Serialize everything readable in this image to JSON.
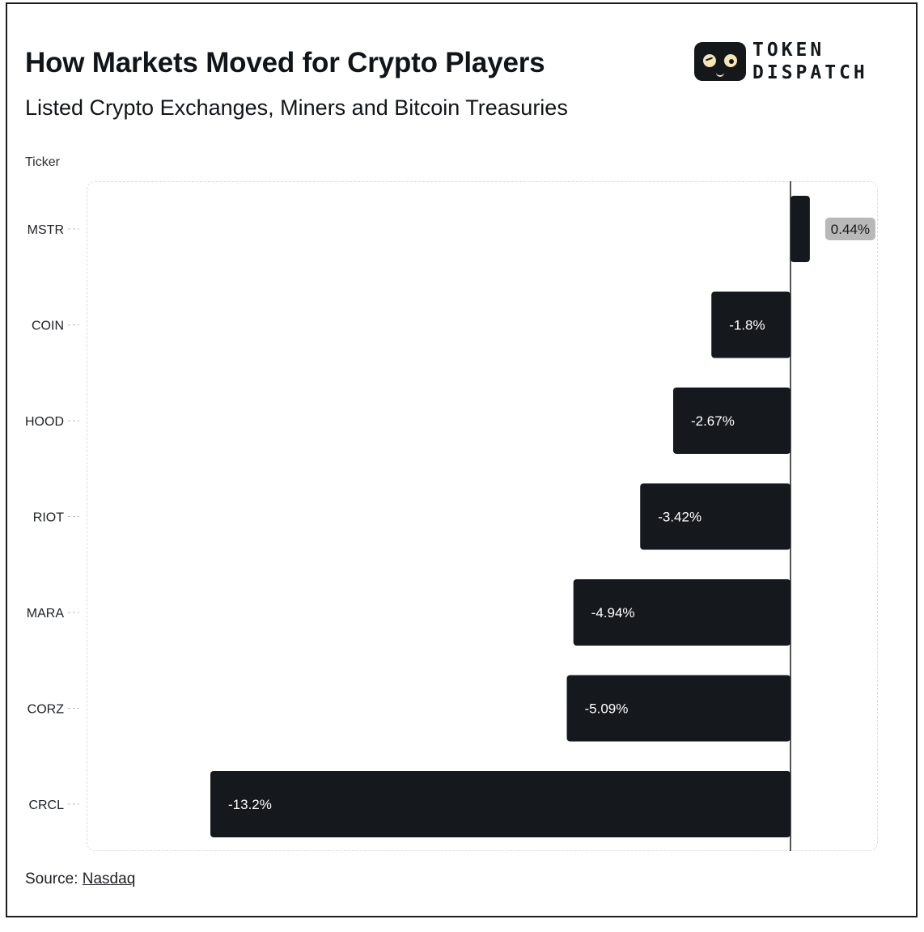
{
  "header": {
    "title": "How Markets Moved for Crypto Players",
    "subtitle": "Listed Crypto Exchanges, Miners and Bitcoin Treasuries"
  },
  "logo": {
    "line1": "TOKEN",
    "line2": "DISPATCH",
    "icon": "goggle-face-icon"
  },
  "footer": {
    "source_label": "Source:",
    "source_link": "Nasdaq"
  },
  "colors": {
    "bar": "#15191d",
    "positive_label_bg": "#b8b8b8",
    "zero_line": "#1b1d20"
  },
  "chart_data": {
    "type": "bar",
    "orientation": "horizontal",
    "title": "How Markets Moved for Crypto Players",
    "subtitle": "Listed Crypto Exchanges, Miners and Bitcoin Treasuries",
    "ylabel": "Ticker",
    "categories": [
      "MSTR",
      "COIN",
      "HOOD",
      "RIOT",
      "MARA",
      "CORZ",
      "CRCL"
    ],
    "values": [
      0.44,
      -1.8,
      -2.67,
      -3.42,
      -4.94,
      -5.09,
      -13.2
    ],
    "data_labels": [
      "0.44%",
      "-1.8%",
      "-2.67%",
      "-3.42%",
      "-4.94%",
      "-5.09%",
      "-13.2%"
    ],
    "xlim": [
      -15.9,
      2.0
    ],
    "grid": false,
    "legend": "none"
  }
}
